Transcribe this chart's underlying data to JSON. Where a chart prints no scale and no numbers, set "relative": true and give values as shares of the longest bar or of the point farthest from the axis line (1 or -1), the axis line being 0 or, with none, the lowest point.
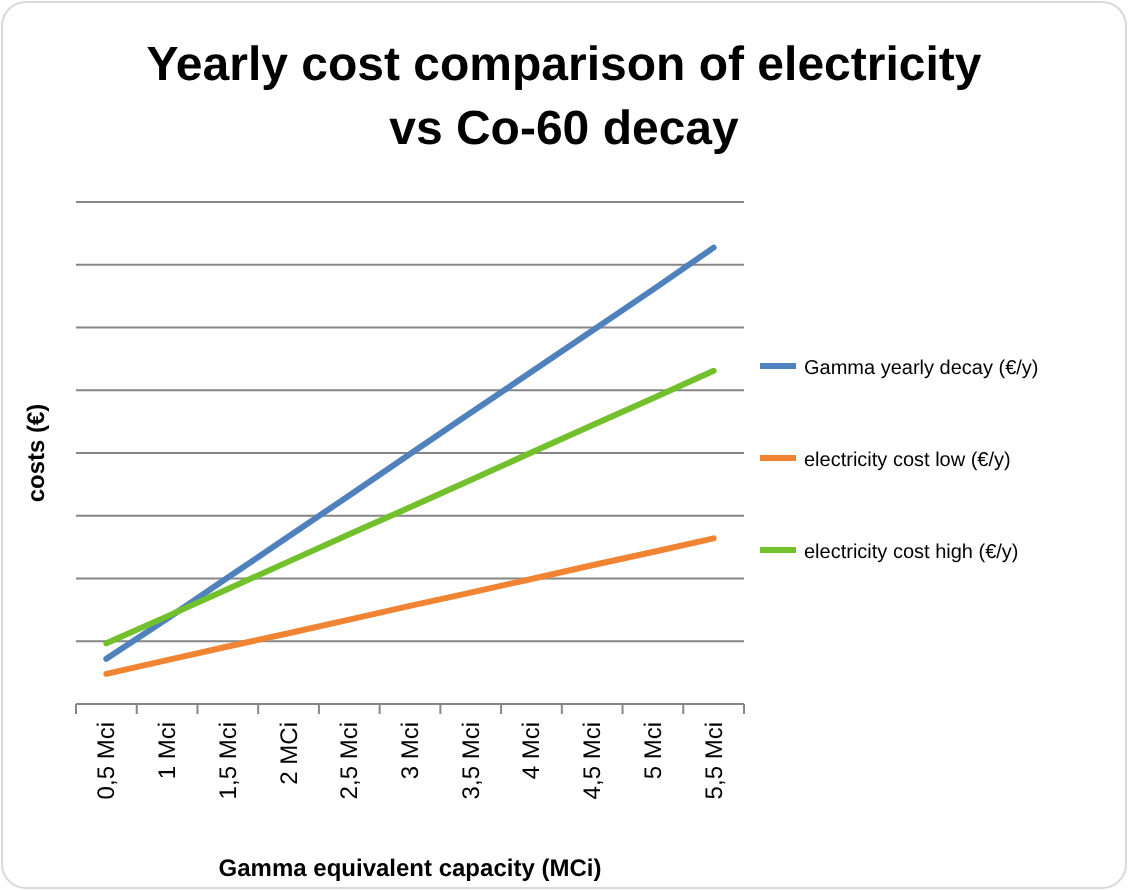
{
  "chart_data": {
    "type": "line",
    "title": "Yearly cost comparison of electricity vs Co-60 decay",
    "xlabel": "Gamma equivalent capacity  (MCi)",
    "ylabel": "costs (€)",
    "relative": true,
    "grid": "y",
    "legend": "right",
    "marker": "none",
    "line_style": "solid",
    "categories": [
      "0,5 Mci",
      "1 Mci",
      "1,5 Mci",
      "2 MCi",
      "2,5 Mci",
      "3 Mci",
      "3,5 Mci",
      "4 Mci",
      "4,5 Mci",
      "5 Mci",
      "5,5 Mci"
    ],
    "series": [
      {
        "name": "Gamma yearly decay (€/y)",
        "color": "#4f81bd",
        "values": [
          0.099,
          0.187,
          0.277,
          0.367,
          0.457,
          0.548,
          0.638,
          0.728,
          0.818,
          0.908,
          1.0
        ]
      },
      {
        "name": "electricity cost low (€/y)",
        "color": "#f08432",
        "values": [
          0.066,
          0.096,
          0.126,
          0.155,
          0.185,
          0.215,
          0.244,
          0.274,
          0.304,
          0.333,
          0.363
        ]
      },
      {
        "name": "electricity cost high (€/y)",
        "color": "#72c02c",
        "values": [
          0.133,
          0.192,
          0.252,
          0.312,
          0.372,
          0.431,
          0.491,
          0.551,
          0.611,
          0.67,
          0.73
        ]
      }
    ]
  }
}
